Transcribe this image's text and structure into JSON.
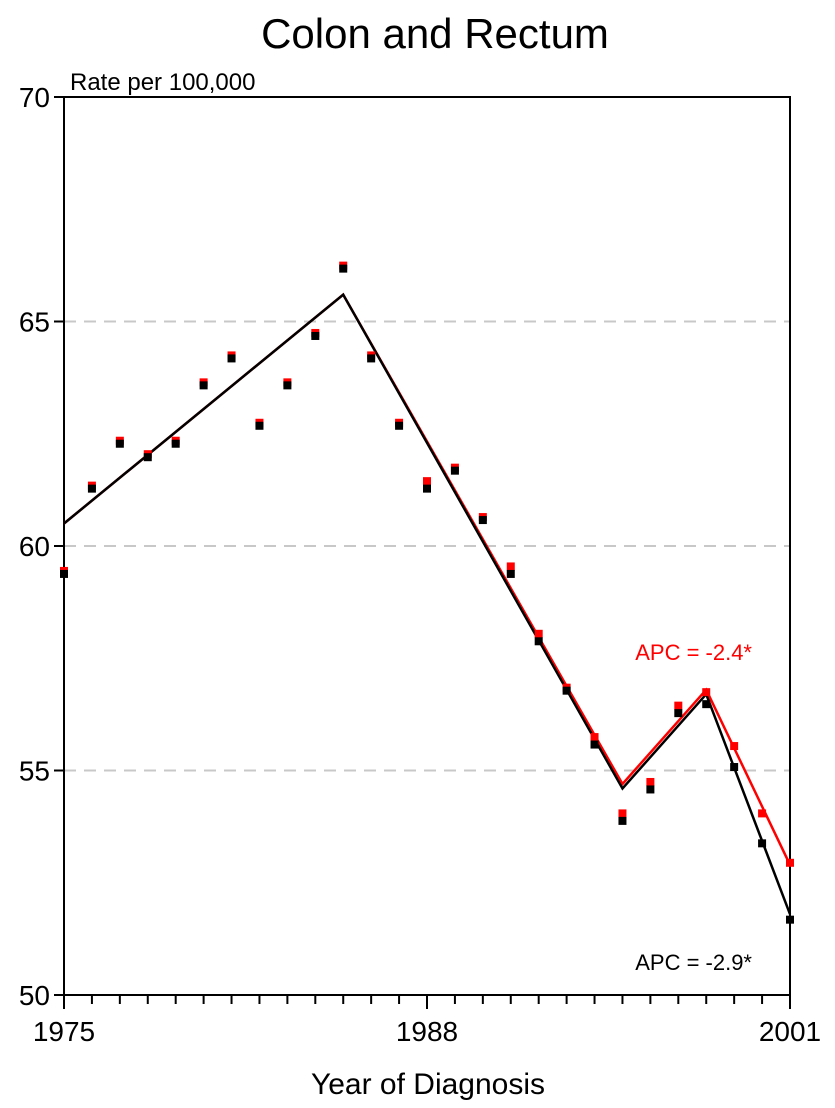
{
  "chart_data": {
    "type": "line",
    "title": "Colon and Rectum",
    "ylabel": "Rate per 100,000",
    "xlabel": "Year of Diagnosis",
    "xlim": [
      1975,
      2001
    ],
    "ylim": [
      50,
      70
    ],
    "x_ticks": [
      1975,
      1988,
      2001
    ],
    "y_ticks": [
      50,
      55,
      60,
      65,
      70
    ],
    "grid": "horizontal dashed at 55, 60, 65",
    "x": [
      1975,
      1976,
      1977,
      1978,
      1979,
      1980,
      1981,
      1982,
      1983,
      1984,
      1985,
      1986,
      1987,
      1988,
      1989,
      1990,
      1991,
      1992,
      1993,
      1994,
      1995,
      1996,
      1997,
      1998,
      1999,
      2000,
      2001
    ],
    "series": [
      {
        "color": "#ff0000",
        "points": [
          59.4,
          61.3,
          62.3,
          62.0,
          62.3,
          63.6,
          64.2,
          62.7,
          63.6,
          64.7,
          66.2,
          64.2,
          62.7,
          61.4,
          61.7,
          60.6,
          59.5,
          58.0,
          56.8,
          55.7,
          54.0,
          54.7,
          56.4,
          56.7,
          55.5,
          54.0,
          52.9
        ],
        "fit_x": [
          1975,
          1985,
          1995,
          1998,
          2001
        ],
        "fit_y": [
          60.5,
          65.6,
          54.7,
          56.8,
          52.9
        ],
        "annotation": "APC = -2.4*"
      },
      {
        "color": "#000000",
        "points": [
          59.4,
          61.3,
          62.3,
          62.0,
          62.3,
          63.6,
          64.2,
          62.7,
          63.6,
          64.7,
          66.2,
          64.2,
          62.7,
          61.3,
          61.7,
          60.6,
          59.4,
          57.9,
          56.8,
          55.6,
          53.9,
          54.6,
          56.3,
          56.5,
          55.1,
          53.4,
          51.7
        ],
        "fit_x": [
          1975,
          1985,
          1995,
          1998,
          2001
        ],
        "fit_y": [
          60.5,
          65.6,
          54.6,
          56.7,
          51.8
        ],
        "annotation": "APC = -2.9*"
      }
    ]
  },
  "colors": {
    "grid": "#c8c8c8",
    "axis": "#000000"
  }
}
